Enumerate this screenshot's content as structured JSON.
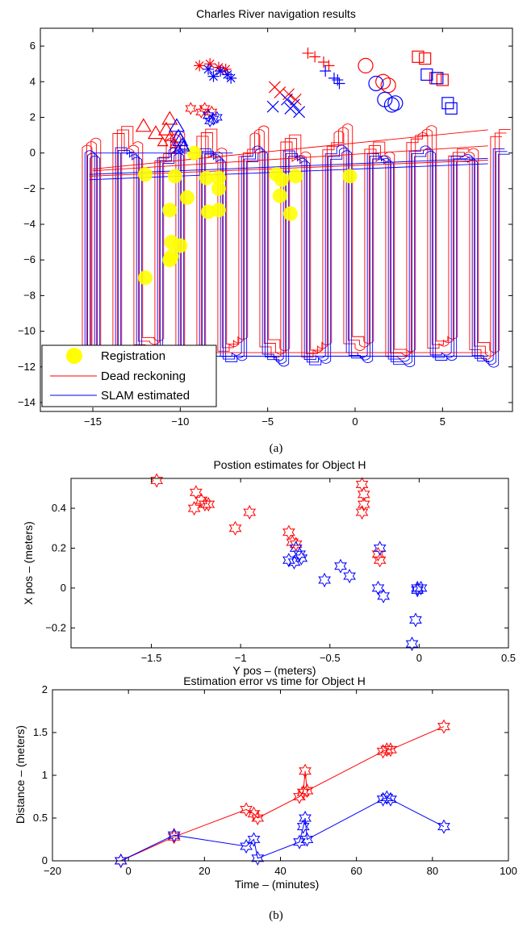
{
  "captions": {
    "a": "(a)",
    "b": "(b)"
  },
  "colors": {
    "red": "#ff0000",
    "blue": "#0000ff",
    "yellow": "#ffff00"
  },
  "chart_data": [
    {
      "id": "nav",
      "type": "line",
      "title": "Charles River navigation results",
      "xlabel": "",
      "ylabel": "",
      "xlim": [
        -18,
        9
      ],
      "ylim": [
        -14.5,
        7
      ],
      "xticks": [
        -15,
        -10,
        -5,
        0,
        5
      ],
      "yticks": [
        6,
        4,
        2,
        0,
        -2,
        -4,
        -6,
        -8,
        -10,
        -12,
        -14
      ],
      "legend": {
        "placement": "bottom-left",
        "entries": [
          "Registration",
          "Dead reckoning",
          "SLAM estimated"
        ]
      },
      "registration_points": [
        [
          -9.2,
          0.0
        ],
        [
          -12.0,
          -1.2
        ],
        [
          -10.3,
          -1.3
        ],
        [
          -8.5,
          -1.4
        ],
        [
          -7.8,
          -1.4
        ],
        [
          -4.5,
          -1.2
        ],
        [
          -4.2,
          -1.5
        ],
        [
          -3.4,
          -1.3
        ],
        [
          -0.3,
          -1.3
        ],
        [
          -9.6,
          -2.5
        ],
        [
          -7.8,
          -2.0
        ],
        [
          -4.3,
          -2.4
        ],
        [
          -10.6,
          -3.2
        ],
        [
          -8.4,
          -3.3
        ],
        [
          -7.8,
          -3.2
        ],
        [
          -3.7,
          -3.4
        ],
        [
          -10.5,
          -5.0
        ],
        [
          -10.0,
          -5.2
        ],
        [
          -10.5,
          -5.8
        ],
        [
          -10.6,
          -6.0
        ],
        [
          -12.0,
          -7.0
        ]
      ],
      "track_x_range": [
        -16,
        8
      ],
      "track_y_range": [
        -12,
        0
      ],
      "objects": [
        {
          "label": "triangle",
          "red": [
            [
              -12.1,
              1.5
            ],
            [
              -11.4,
              1.1
            ],
            [
              -10.6,
              1.9
            ],
            [
              -10.8,
              1.3
            ]
          ],
          "blue": [
            [
              -10.2,
              1.5
            ],
            [
              -10.0,
              0.7
            ],
            [
              -9.9,
              0.4
            ],
            [
              -10.1,
              0.9
            ]
          ]
        },
        {
          "label": "triangle-small",
          "red": [
            [
              -11.0,
              0.6
            ],
            [
              -10.6,
              0.9
            ],
            [
              -10.3,
              0.5
            ]
          ],
          "blue": [
            [
              -10.1,
              0.2
            ],
            [
              -9.8,
              0.4
            ]
          ]
        },
        {
          "label": "star",
          "red": [
            [
              -9.4,
              2.5
            ],
            [
              -8.8,
              2.3
            ],
            [
              -8.6,
              2.5
            ],
            [
              -8.2,
              2.3
            ]
          ],
          "blue": [
            [
              -8.4,
              2.1
            ],
            [
              -8.1,
              1.9
            ],
            [
              -7.9,
              2.0
            ],
            [
              -8.3,
              1.8
            ]
          ]
        },
        {
          "label": "asterisk",
          "red": [
            [
              -8.9,
              4.9
            ],
            [
              -8.3,
              5.0
            ],
            [
              -7.8,
              4.8
            ],
            [
              -7.4,
              4.7
            ]
          ],
          "blue": [
            [
              -8.1,
              4.3
            ],
            [
              -7.7,
              4.6
            ],
            [
              -7.3,
              4.4
            ],
            [
              -7.1,
              4.2
            ],
            [
              -8.4,
              4.7
            ]
          ]
        },
        {
          "label": "x",
          "red": [
            [
              -4.6,
              3.7
            ],
            [
              -4.3,
              3.4
            ],
            [
              -3.8,
              3.3
            ],
            [
              -3.4,
              3.0
            ]
          ],
          "blue": [
            [
              -4.7,
              2.6
            ],
            [
              -3.9,
              3.0
            ],
            [
              -3.5,
              2.7
            ],
            [
              -3.2,
              2.3
            ],
            [
              -3.7,
              2.5
            ]
          ]
        },
        {
          "label": "plus",
          "red": [
            [
              -2.7,
              5.6
            ],
            [
              -2.3,
              5.4
            ],
            [
              -1.8,
              5.1
            ],
            [
              -1.5,
              4.9
            ]
          ],
          "blue": [
            [
              -1.7,
              4.6
            ],
            [
              -1.2,
              4.2
            ],
            [
              -0.9,
              3.9
            ],
            [
              -1.0,
              4.1
            ]
          ]
        },
        {
          "label": "circle",
          "red": [
            [
              0.6,
              4.9
            ],
            [
              1.6,
              4.0
            ],
            [
              1.9,
              3.8
            ]
          ],
          "blue": [
            [
              1.2,
              3.9
            ],
            [
              1.7,
              3.0
            ],
            [
              2.1,
              2.7
            ],
            [
              2.3,
              2.8
            ]
          ]
        },
        {
          "label": "square",
          "red": [
            [
              3.6,
              5.4
            ],
            [
              4.0,
              5.3
            ],
            [
              4.6,
              4.2
            ],
            [
              5.0,
              4.1
            ]
          ],
          "blue": [
            [
              4.1,
              4.4
            ],
            [
              4.7,
              4.2
            ],
            [
              5.3,
              2.8
            ],
            [
              5.5,
              2.5
            ]
          ]
        }
      ]
    },
    {
      "id": "pos",
      "type": "scatter",
      "title": "Postion estimates for Object H",
      "xlabel": "Y pos – (meters)",
      "ylabel": "X pos – (meters)",
      "xlim": [
        -1.95,
        0.5
      ],
      "ylim": [
        -0.3,
        0.55
      ],
      "xticks": [
        -1.5,
        -1,
        -0.5,
        0,
        0.5
      ],
      "xticklabels": [
        "−1.5",
        "−1",
        "−0.5",
        "0",
        "0.5"
      ],
      "yticks": [
        -0.2,
        0,
        0.2,
        0.4
      ],
      "yticklabels": [
        "−0.2",
        "0",
        "0.2",
        "0.4"
      ],
      "series": [
        {
          "color": "red",
          "x": [
            -1.47,
            -1.25,
            -1.22,
            -1.18,
            -1.26,
            -1.2,
            -1.03,
            -0.95,
            -0.73,
            -0.71,
            -0.69,
            -0.32,
            -0.31,
            -0.31,
            -0.32,
            -0.23,
            -0.22
          ],
          "y": [
            0.54,
            0.48,
            0.44,
            0.42,
            0.4,
            0.42,
            0.3,
            0.38,
            0.28,
            0.23,
            0.22,
            0.52,
            0.47,
            0.42,
            0.38,
            0.17,
            0.14
          ]
        },
        {
          "color": "blue",
          "x": [
            -0.73,
            -0.7,
            -0.69,
            -0.67,
            -0.66,
            -0.53,
            -0.44,
            -0.39,
            -0.22,
            -0.23,
            -0.2,
            -0.01,
            -0.01,
            0.01,
            -0.02,
            -0.04
          ],
          "y": [
            0.14,
            0.13,
            0.2,
            0.17,
            0.15,
            0.04,
            0.11,
            0.06,
            0.2,
            0.0,
            -0.04,
            0.0,
            -0.01,
            0.0,
            -0.16,
            -0.28
          ]
        }
      ]
    },
    {
      "id": "err",
      "type": "line",
      "title": "Estimation error vs time for Object H",
      "xlabel": "Time – (minutes)",
      "ylabel": "Distance – (meters)",
      "xlim": [
        -20,
        100
      ],
      "ylim": [
        0,
        2
      ],
      "xticks": [
        -20,
        0,
        20,
        40,
        60,
        80,
        100
      ],
      "xticklabels": [
        "−20",
        "0",
        "20",
        "40",
        "60",
        "80",
        "100"
      ],
      "yticks": [
        0,
        0.5,
        1,
        1.5,
        2
      ],
      "yticklabels": [
        "0",
        "0.5",
        "1",
        "1.5",
        "2"
      ],
      "series": [
        {
          "color": "red",
          "x": [
            -2,
            12,
            31,
            33,
            34,
            45,
            46,
            46.5,
            47,
            67,
            68,
            69,
            83
          ],
          "y": [
            0.0,
            0.28,
            0.6,
            0.55,
            0.5,
            0.75,
            0.8,
            1.05,
            0.82,
            1.28,
            1.3,
            1.3,
            1.57
          ]
        },
        {
          "color": "blue",
          "x": [
            -2,
            12,
            31,
            33,
            34,
            45,
            46,
            46.5,
            47,
            67,
            68,
            69,
            83
          ],
          "y": [
            0.0,
            0.3,
            0.17,
            0.25,
            0.03,
            0.22,
            0.4,
            0.5,
            0.25,
            0.72,
            0.74,
            0.72,
            0.4
          ]
        }
      ]
    }
  ]
}
